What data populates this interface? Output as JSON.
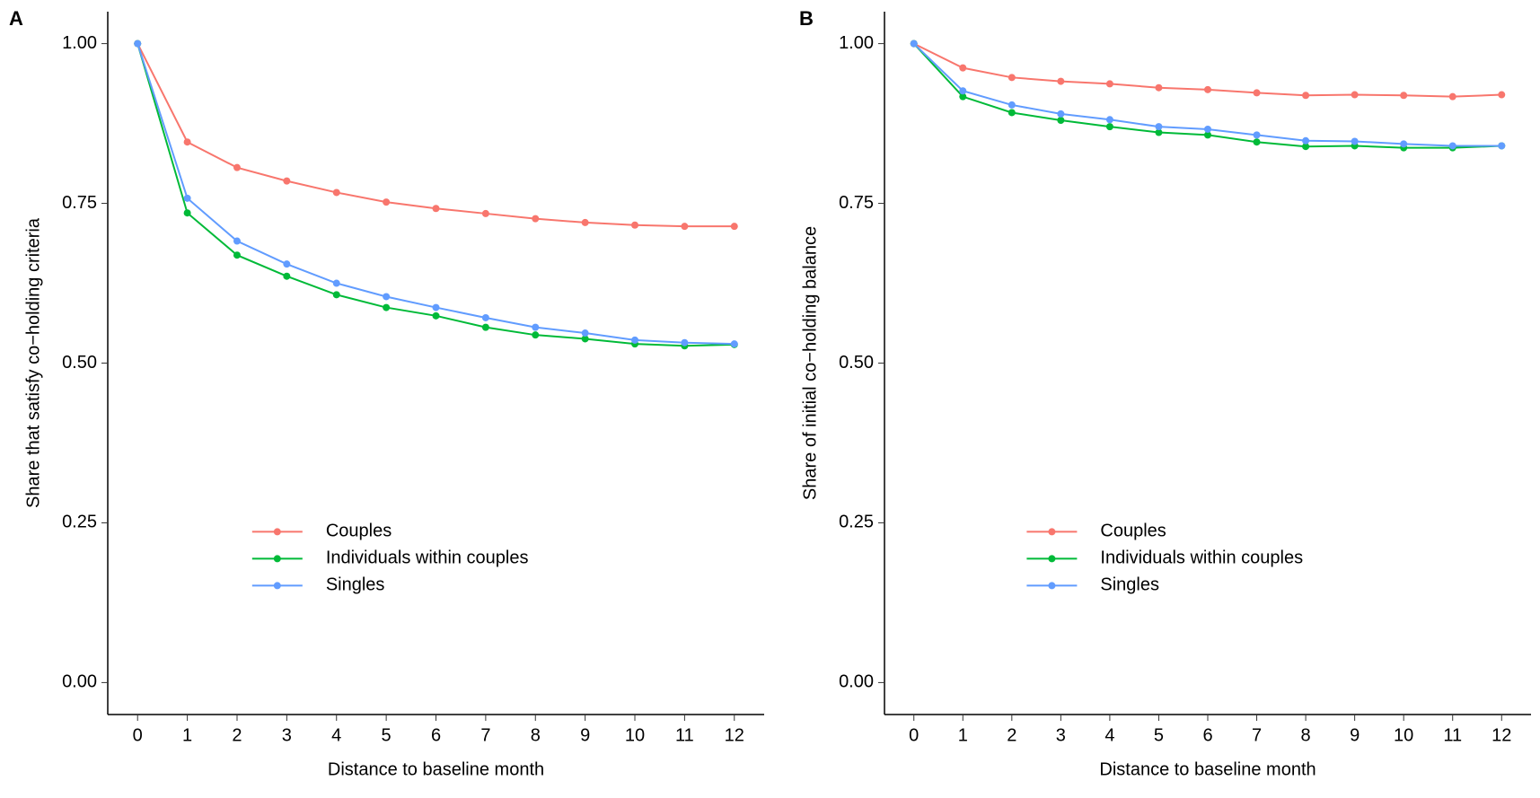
{
  "chart_data": [
    {
      "type": "line",
      "tag": "A",
      "x_label": "Distance to baseline month",
      "y_label": "Share that satisfy co−holding criteria",
      "x": [
        0,
        1,
        2,
        3,
        4,
        5,
        6,
        7,
        8,
        9,
        10,
        11,
        12
      ],
      "xlim": [
        -0.6,
        12.6
      ],
      "xticks": [
        0,
        1,
        2,
        3,
        4,
        5,
        6,
        7,
        8,
        9,
        10,
        11,
        12
      ],
      "ylim": [
        -0.05,
        1.05
      ],
      "yticks": [
        {
          "value": 0,
          "label": "0.00"
        },
        {
          "value": 0.25,
          "label": "0.25"
        },
        {
          "value": 0.5,
          "label": "0.50"
        },
        {
          "value": 0.75,
          "label": "0.75"
        },
        {
          "value": 1,
          "label": "1.00"
        }
      ],
      "legend": "bottom center",
      "series": [
        {
          "name": "Couples",
          "color": "#F8766D",
          "values": [
            1,
            0.846,
            0.806,
            0.785,
            0.767,
            0.752,
            0.742,
            0.734,
            0.726,
            0.72,
            0.716,
            0.714,
            0.714
          ]
        },
        {
          "name": "Individuals within couples",
          "color": "#00BA38",
          "values": [
            1,
            0.735,
            0.669,
            0.636,
            0.607,
            0.587,
            0.574,
            0.556,
            0.544,
            0.538,
            0.53,
            0.527,
            0.529
          ]
        },
        {
          "name": "Singles",
          "color": "#619CFF",
          "values": [
            1,
            0.758,
            0.691,
            0.655,
            0.625,
            0.604,
            0.587,
            0.571,
            0.556,
            0.547,
            0.536,
            0.532,
            0.53
          ]
        }
      ]
    },
    {
      "type": "line",
      "tag": "B",
      "x_label": "Distance to baseline month",
      "y_label": "Share of initial co−holding balance",
      "x": [
        0,
        1,
        2,
        3,
        4,
        5,
        6,
        7,
        8,
        9,
        10,
        11,
        12
      ],
      "xlim": [
        -0.6,
        12.6
      ],
      "xticks": [
        0,
        1,
        2,
        3,
        4,
        5,
        6,
        7,
        8,
        9,
        10,
        11,
        12
      ],
      "ylim": [
        -0.05,
        1.05
      ],
      "yticks": [
        {
          "value": 0,
          "label": "0.00"
        },
        {
          "value": 0.25,
          "label": "0.25"
        },
        {
          "value": 0.5,
          "label": "0.50"
        },
        {
          "value": 0.75,
          "label": "0.75"
        },
        {
          "value": 1,
          "label": "1.00"
        }
      ],
      "legend": "bottom center",
      "series": [
        {
          "name": "Couples",
          "color": "#F8766D",
          "values": [
            1,
            0.962,
            0.947,
            0.941,
            0.937,
            0.931,
            0.928,
            0.923,
            0.919,
            0.92,
            0.919,
            0.917,
            0.92
          ]
        },
        {
          "name": "Individuals within couples",
          "color": "#00BA38",
          "values": [
            1,
            0.917,
            0.892,
            0.88,
            0.87,
            0.861,
            0.857,
            0.846,
            0.839,
            0.84,
            0.837,
            0.837,
            0.84
          ]
        },
        {
          "name": "Singles",
          "color": "#619CFF",
          "values": [
            1,
            0.926,
            0.904,
            0.89,
            0.881,
            0.87,
            0.866,
            0.857,
            0.848,
            0.847,
            0.843,
            0.84,
            0.84
          ]
        }
      ]
    }
  ]
}
